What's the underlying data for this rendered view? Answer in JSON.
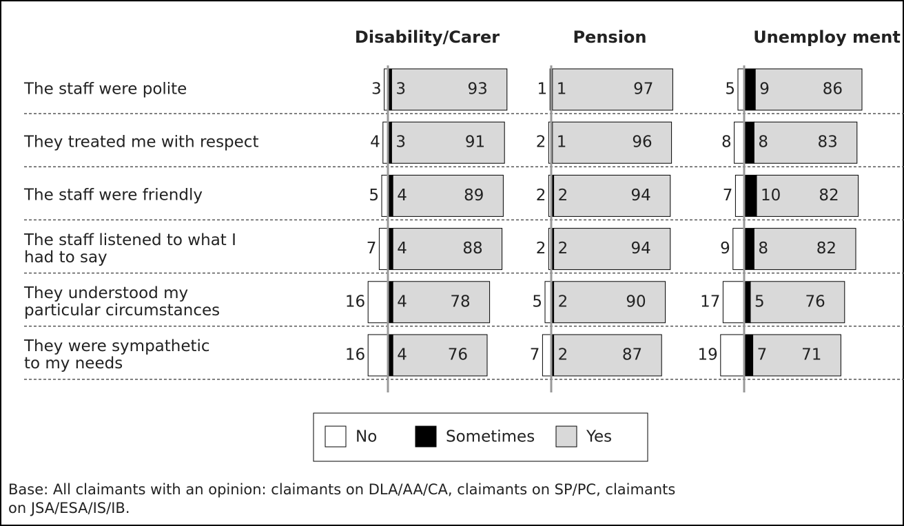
{
  "chart_data": {
    "type": "diverging-stacked-bar",
    "categories": [
      "The staff were polite",
      "They treated me with respect",
      "The staff were friendly",
      "The staff listened to what I\nhad to say",
      "They understood my\nparticular circumstances",
      "They were sympathetic\nto my needs"
    ],
    "series": [
      {
        "name": "No",
        "color": "#ffffff"
      },
      {
        "name": "Sometimes",
        "color": "#000000"
      },
      {
        "name": "Yes",
        "color": "#d9d9d9"
      }
    ],
    "panels": [
      {
        "title": "Disability/Carer",
        "series_values": [
          [
            3,
            4,
            5,
            7,
            16,
            16
          ],
          [
            3,
            3,
            4,
            4,
            4,
            4
          ],
          [
            93,
            91,
            89,
            88,
            78,
            76
          ]
        ]
      },
      {
        "title": "Pension",
        "series_values": [
          [
            1,
            2,
            2,
            2,
            5,
            7
          ],
          [
            1,
            1,
            2,
            2,
            2,
            2
          ],
          [
            97,
            96,
            94,
            94,
            90,
            87
          ]
        ]
      },
      {
        "title": "Unemploy ment",
        "series_values": [
          [
            5,
            8,
            7,
            9,
            17,
            19
          ],
          [
            9,
            8,
            10,
            8,
            5,
            7
          ],
          [
            86,
            83,
            82,
            82,
            76,
            71
          ]
        ]
      }
    ],
    "note": "Base: All claimants with an opinion: claimants on DLA/AA/CA, claimants on SP/PC, claimants\non JSA/ESA/IS/IB."
  }
}
